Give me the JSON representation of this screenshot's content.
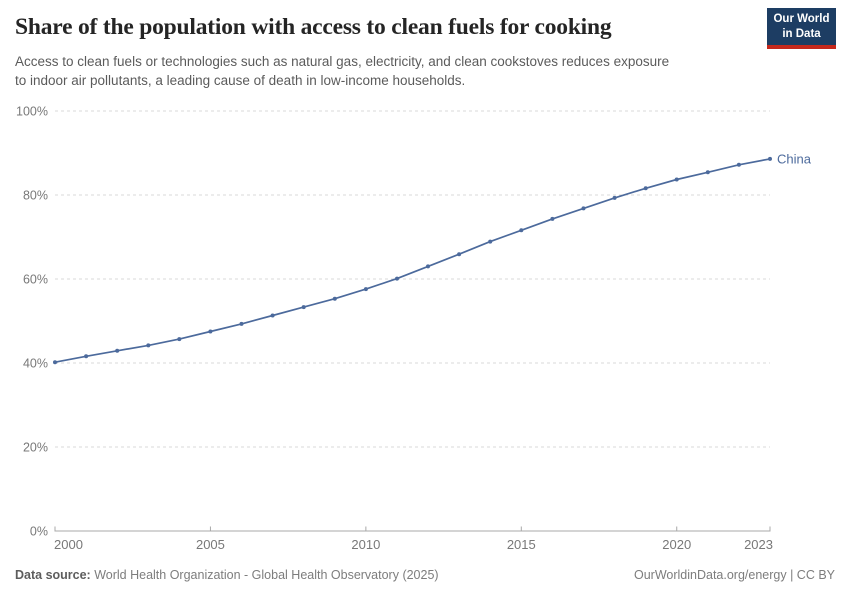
{
  "header": {
    "title": "Share of the population with access to clean fuels for cooking",
    "subtitle_line1": "Access to clean fuels or technologies such as natural gas, electricity, and clean cookstoves reduces exposure",
    "subtitle_line2": "to indoor air pollutants, a leading cause of death in low-income households.",
    "logo": {
      "line1": "Our World",
      "line2": "in Data",
      "bg_color": "#1d3d63",
      "accent_color": "#c5281c"
    }
  },
  "chart_data": {
    "type": "line",
    "title": "Share of the population with access to clean fuels for cooking",
    "xlabel": "",
    "ylabel": "",
    "xlim": [
      2000,
      2023
    ],
    "ylim": [
      0,
      100
    ],
    "x_ticks": [
      2000,
      2005,
      2010,
      2015,
      2020,
      2023
    ],
    "y_ticks": [
      0,
      20,
      40,
      60,
      80,
      100
    ],
    "y_tick_suffix": "%",
    "grid": "horizontal-dashed",
    "legend_position": "end-of-line",
    "series": [
      {
        "name": "China",
        "color": "#4c6a9c",
        "x": [
          2000,
          2001,
          2002,
          2003,
          2004,
          2005,
          2006,
          2007,
          2008,
          2009,
          2010,
          2011,
          2012,
          2013,
          2014,
          2015,
          2016,
          2017,
          2018,
          2019,
          2020,
          2021,
          2022,
          2023
        ],
        "values": [
          40.2,
          41.6,
          42.9,
          44.2,
          45.7,
          47.5,
          49.3,
          51.3,
          53.3,
          55.3,
          57.6,
          60.1,
          63.0,
          65.9,
          68.9,
          71.6,
          74.3,
          76.8,
          79.3,
          81.6,
          83.7,
          85.4,
          87.2,
          88.6
        ]
      }
    ]
  },
  "footer": {
    "datasource_label": "Data source:",
    "datasource_text": " World Health Organization - Global Health Observatory (2025)",
    "attribution": "OurWorldinData.org/energy | CC BY"
  }
}
